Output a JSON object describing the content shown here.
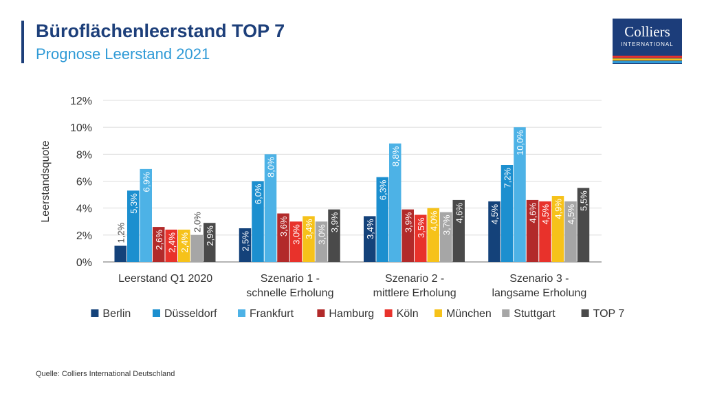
{
  "header": {
    "title": "Büroflächenleerstand TOP 7",
    "subtitle": "Prognose Leerstand 2021"
  },
  "logo": {
    "name": "Colliers",
    "sub": "INTERNATIONAL",
    "colors": [
      "#1c3d7a",
      "#e8322b",
      "#f6c21a",
      "#2f9ad6"
    ]
  },
  "chart_data": {
    "type": "bar",
    "ylabel": "Leerstandsquote",
    "ylim": [
      0,
      12
    ],
    "yticks": [
      0,
      2,
      4,
      6,
      8,
      10,
      12
    ],
    "ytick_labels": [
      "0%",
      "2%",
      "4%",
      "6%",
      "8%",
      "10%",
      "12%"
    ],
    "grid": true,
    "legend_position": "bottom",
    "categories": [
      [
        "Leerstand Q1 2020"
      ],
      [
        "Szenario 1 -",
        "schnelle Erholung"
      ],
      [
        "Szenario 2 -",
        "mittlere Erholung"
      ],
      [
        "Szenario 3 -",
        "langsame Erholung"
      ]
    ],
    "series": [
      {
        "name": "Berlin",
        "color": "#14427a",
        "values": [
          1.2,
          2.5,
          3.4,
          4.5
        ],
        "labels": [
          "1,2%",
          "2,5%",
          "3,4%",
          "4,5%"
        ]
      },
      {
        "name": "Düsseldorf",
        "color": "#1c8fcf",
        "values": [
          5.3,
          6.0,
          6.3,
          7.2
        ],
        "labels": [
          "5,3%",
          "6,0%",
          "6,3%",
          "7,2%"
        ]
      },
      {
        "name": "Frankfurt",
        "color": "#4db2e6",
        "values": [
          6.9,
          8.0,
          8.8,
          10.0
        ],
        "labels": [
          "6,9%",
          "8,0%",
          "8,8%",
          "10,0%"
        ]
      },
      {
        "name": "Hamburg",
        "color": "#b22a2a",
        "values": [
          2.6,
          3.6,
          3.9,
          4.6
        ],
        "labels": [
          "2,6%",
          "3,6%",
          "3,9%",
          "4,6%"
        ]
      },
      {
        "name": "Köln",
        "color": "#e8322b",
        "values": [
          2.4,
          3.0,
          3.5,
          4.5
        ],
        "labels": [
          "2,4%",
          "3,0%",
          "3,5%",
          "4,5%"
        ]
      },
      {
        "name": "München",
        "color": "#f6c21a",
        "values": [
          2.4,
          3.4,
          4.0,
          4.9
        ],
        "labels": [
          "2,4%",
          "3,4%",
          "4,0%",
          "4,9%"
        ]
      },
      {
        "name": "Stuttgart",
        "color": "#a6a6a6",
        "values": [
          2.0,
          3.0,
          3.7,
          4.5
        ],
        "labels": [
          "2,0%",
          "3,0%",
          "3,7%",
          "4,5%"
        ]
      },
      {
        "name": "TOP 7",
        "color": "#4a4a4a",
        "values": [
          2.9,
          3.9,
          4.6,
          5.5
        ],
        "labels": [
          "2,9%",
          "3,9%",
          "4,6%",
          "5,5%"
        ]
      }
    ]
  },
  "footer": {
    "source": "Quelle: Colliers International Deutschland"
  }
}
